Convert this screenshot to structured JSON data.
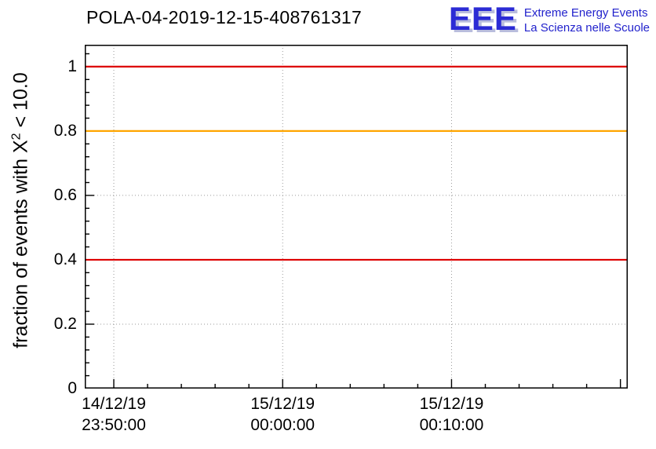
{
  "logo": {
    "acronym": "EEE",
    "line1": "Extreme Energy Events",
    "line2": "La Scienza nelle Scuole",
    "color": "#2222cc"
  },
  "chart_data": {
    "type": "line",
    "title": "POLA-04-2019-12-15-408761317",
    "xlabel": "",
    "ylabel_prefix": "fraction of events with X",
    "ylabel_sup": "2",
    "ylabel_suffix": " < 10.0",
    "ylim": [
      0,
      1.068
    ],
    "yticks": [
      "0",
      "0.2",
      "0.4",
      "0.6",
      "0.8",
      "1"
    ],
    "y_minor_step": 0.04,
    "y_minors_per_major": 5,
    "x_axis": {
      "first_frac": 0.0535,
      "minor_step_frac": 0.0622,
      "minors_per_major": 5
    },
    "xticks": [
      [
        "14/12/19",
        "23:50:00"
      ],
      [
        "15/12/19",
        "00:00:00"
      ],
      [
        "15/12/19",
        "00:10:00"
      ]
    ],
    "grid": true,
    "legend": "none",
    "series": [
      {
        "name": "upper-threshold-line",
        "color": "#dd0000",
        "y": 1.0
      },
      {
        "name": "warning-threshold-line",
        "color": "#ffa500",
        "y": 0.8
      },
      {
        "name": "lower-threshold-line",
        "color": "#dd0000",
        "y": 0.4
      }
    ],
    "frame_color": "#000000",
    "grid_color": "#9a9a9a"
  }
}
